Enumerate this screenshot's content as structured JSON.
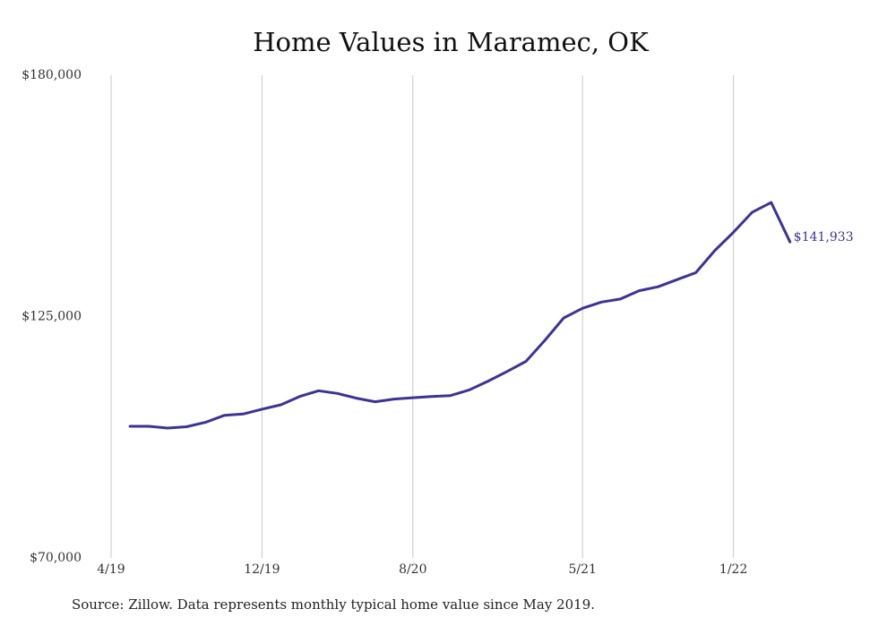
{
  "chart_data": {
    "type": "line",
    "title": "Home Values in Maramec, OK",
    "xlabel": "",
    "ylabel": "",
    "ylim": [
      70000,
      180000
    ],
    "yticks": [
      "$180,000",
      "$125,000",
      "$70,000"
    ],
    "ytick_values": [
      180000,
      125000,
      70000
    ],
    "xticks": [
      {
        "label": "4/19",
        "date": "2019-04"
      },
      {
        "label": "12/19",
        "date": "2019-12"
      },
      {
        "label": "8/20",
        "date": "2020-08"
      },
      {
        "label": "5/21",
        "date": "2021-05"
      },
      {
        "label": "1/22",
        "date": "2022-01"
      }
    ],
    "grid": "vertical",
    "line_color": "#3b3496",
    "end_label": "$141,933",
    "series": [
      {
        "x": [
          "2019-05",
          "2019-06",
          "2019-07",
          "2019-08",
          "2019-09",
          "2019-10",
          "2019-11",
          "2019-12",
          "2020-01",
          "2020-02",
          "2020-03",
          "2020-04",
          "2020-05",
          "2020-06",
          "2020-07",
          "2020-08",
          "2020-09",
          "2020-10",
          "2020-11",
          "2020-12",
          "2021-01",
          "2021-02",
          "2021-03",
          "2021-04",
          "2021-05",
          "2021-06",
          "2021-07",
          "2021-08",
          "2021-09",
          "2021-10",
          "2021-11",
          "2021-12",
          "2022-01",
          "2022-02",
          "2022-03",
          "2022-04"
        ],
        "values": [
          100000,
          100000,
          99600,
          99900,
          100900,
          102500,
          102800,
          103900,
          104900,
          106800,
          108100,
          107500,
          106400,
          105600,
          106200,
          106500,
          106800,
          107000,
          108300,
          110300,
          112500,
          114800,
          119600,
          124700,
          126900,
          128300,
          129000,
          130900,
          131800,
          133400,
          135000,
          140000,
          144200,
          148800,
          151000,
          142000
        ]
      }
    ]
  },
  "source_note": "Source: Zillow. Data represents monthly typical home value since May 2019."
}
